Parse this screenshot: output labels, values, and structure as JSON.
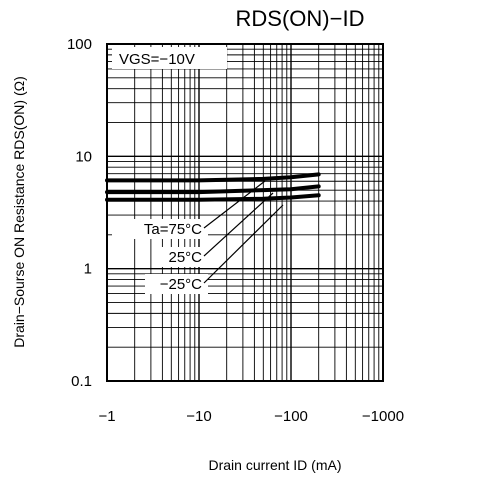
{
  "chart_data": {
    "type": "line",
    "title": "RDS(ON)−ID",
    "xlabel": "Drain current ID (mA)",
    "ylabel": "Drain−Sourse ON Resistance RDS(ON) (Ω)",
    "x_scale": "log",
    "y_scale": "log",
    "x_direction": "negative",
    "xlim": [
      -1,
      -1000
    ],
    "ylim": [
      0.1,
      100
    ],
    "x_ticks": [
      -1,
      -10,
      -100,
      -1000
    ],
    "x_tick_labels": [
      "−1",
      "−10",
      "−100",
      "−1000"
    ],
    "y_ticks": [
      0.1,
      1,
      10,
      100
    ],
    "y_tick_labels": [
      "0.1",
      "1",
      "10",
      "100"
    ],
    "grid": true,
    "condition_label": "VGS=−10V",
    "series": [
      {
        "name": "Ta=75°C",
        "x": [
          -1,
          -10,
          -50,
          -100,
          -200
        ],
        "y": [
          6.1,
          6.1,
          6.3,
          6.5,
          6.9
        ]
      },
      {
        "name": "25°C",
        "x": [
          -1,
          -10,
          -50,
          -100,
          -200
        ],
        "y": [
          4.8,
          4.8,
          5.0,
          5.1,
          5.4
        ]
      },
      {
        "name": "−25°C",
        "x": [
          -1,
          -10,
          -50,
          -100,
          -200
        ],
        "y": [
          4.1,
          4.1,
          4.2,
          4.3,
          4.5
        ]
      }
    ]
  }
}
